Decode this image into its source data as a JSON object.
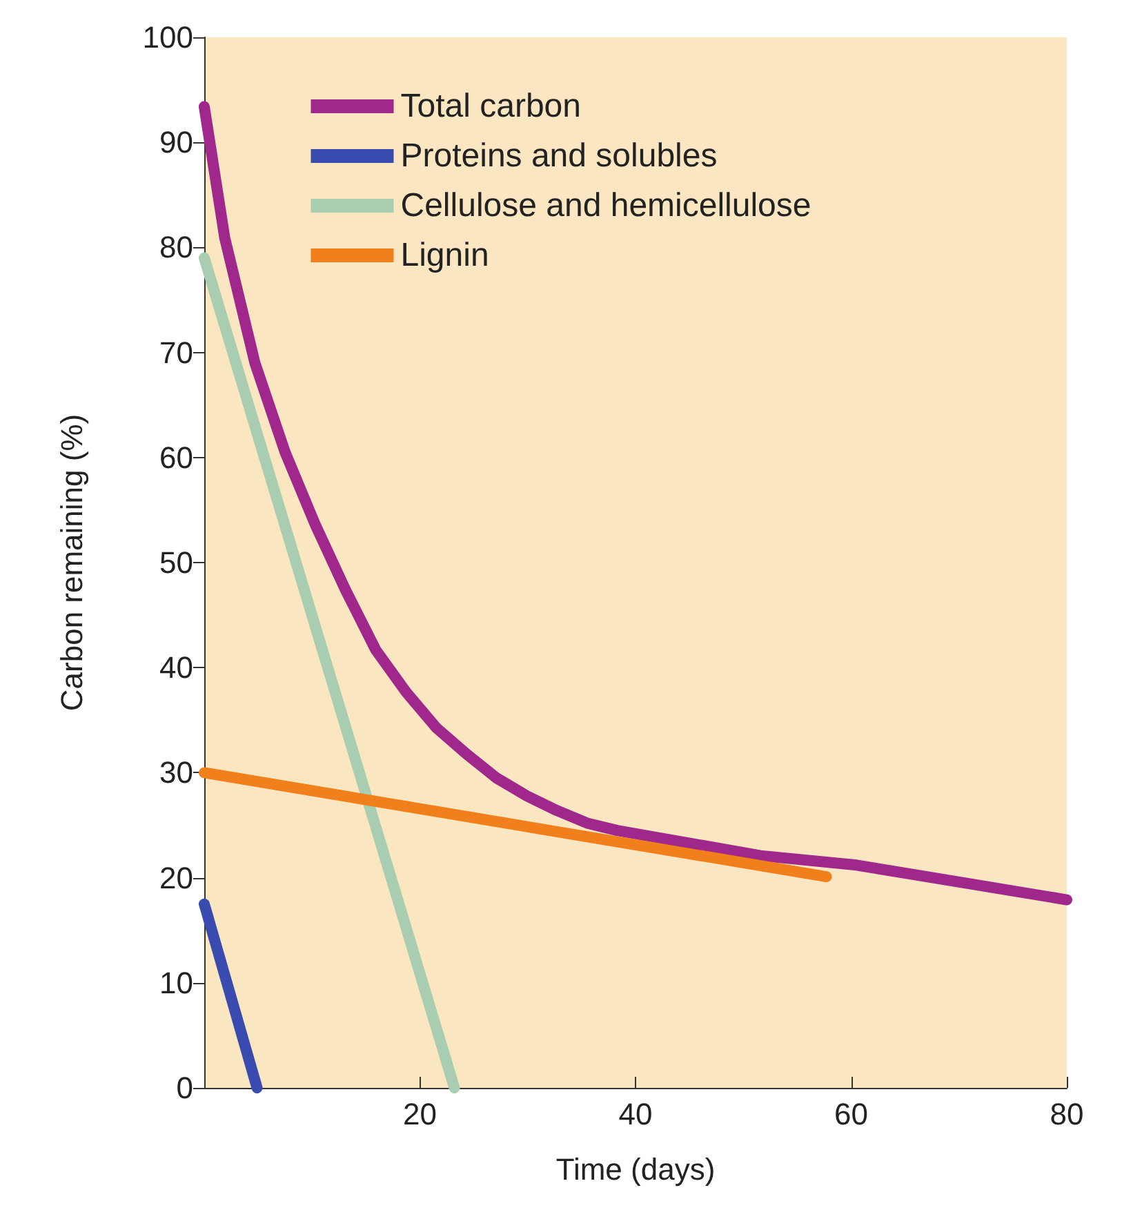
{
  "chart_data": {
    "type": "line",
    "xlabel": "Time (days)",
    "ylabel": "Carbon remaining (%)",
    "xlim": [
      0,
      80
    ],
    "xticks": [
      20,
      40,
      60,
      80
    ],
    "ylim": [
      0,
      100
    ],
    "yticks": [
      0,
      10,
      20,
      30,
      40,
      50,
      60,
      70,
      80,
      90,
      100
    ],
    "grid": false,
    "legend": "top",
    "marker": "none",
    "line_style": "solid",
    "series": [
      {
        "name": "Total carbon",
        "color": "#a0288c",
        "x": [
          0,
          1.9,
          4.7,
          7.5,
          10.3,
          13.1,
          15.9,
          18.7,
          21.5,
          24.3,
          27.1,
          29.9,
          32.7,
          35.5,
          38.3,
          42.2,
          51.6,
          60.5,
          80
        ],
        "values": [
          93.4,
          80.9,
          69,
          60.5,
          53.6,
          47.4,
          41.7,
          37.7,
          34.3,
          31.8,
          29.5,
          27.8,
          26.4,
          25.2,
          24.5,
          23.8,
          22.1,
          21.2,
          17.9
        ]
      },
      {
        "name": "Proteins and solubles",
        "color": "#3a4bb0",
        "x": [
          0,
          4.9
        ],
        "values": [
          17.5,
          0
        ]
      },
      {
        "name": "Cellulose and hemicellulose",
        "color": "#a8cdb0",
        "x": [
          0,
          23.2
        ],
        "values": [
          79,
          0
        ]
      },
      {
        "name": "Lignin",
        "color": "#f07f1c",
        "x": [
          0,
          57.7
        ],
        "values": [
          30,
          20.1
        ]
      }
    ]
  }
}
